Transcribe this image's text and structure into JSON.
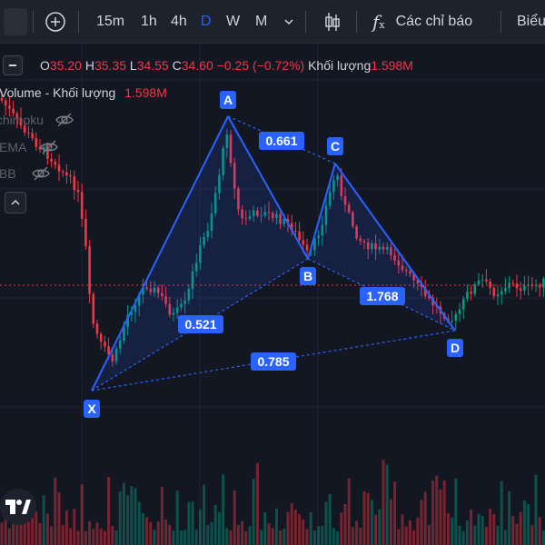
{
  "toolbar": {
    "intervals": [
      "15m",
      "1h",
      "4h",
      "D",
      "W",
      "M"
    ],
    "active_interval": "D",
    "indicators_label": "Các chỉ báo",
    "chart_type_label": "Biểu"
  },
  "legend": {
    "o_label": "O",
    "o_value": "35.20",
    "h_label": "H",
    "h_value": "35.35",
    "l_label": "L",
    "l_value": "34.55",
    "c_label": "C",
    "c_value": "34.60",
    "change": "−0.25 (−0.72%)",
    "volume_label": "Khối lượng",
    "volume_value": "1.598M"
  },
  "volume_row": {
    "name": "Volume - Khối lượng",
    "value": "1.598M"
  },
  "indicators": [
    "Ichimoku",
    "EMA",
    "BB"
  ],
  "pattern": {
    "points": [
      "X",
      "A",
      "B",
      "C",
      "D"
    ],
    "ratios": {
      "xab": "0.521",
      "abc": "0.661",
      "bcd": "1.768",
      "xad": "0.785"
    }
  },
  "colors": {
    "background": "#131722",
    "up": "#089981",
    "down": "#f23645",
    "pattern": "#2962ff",
    "price_line": "#f23645"
  },
  "logo_icon": "tradingview-logo-icon"
}
